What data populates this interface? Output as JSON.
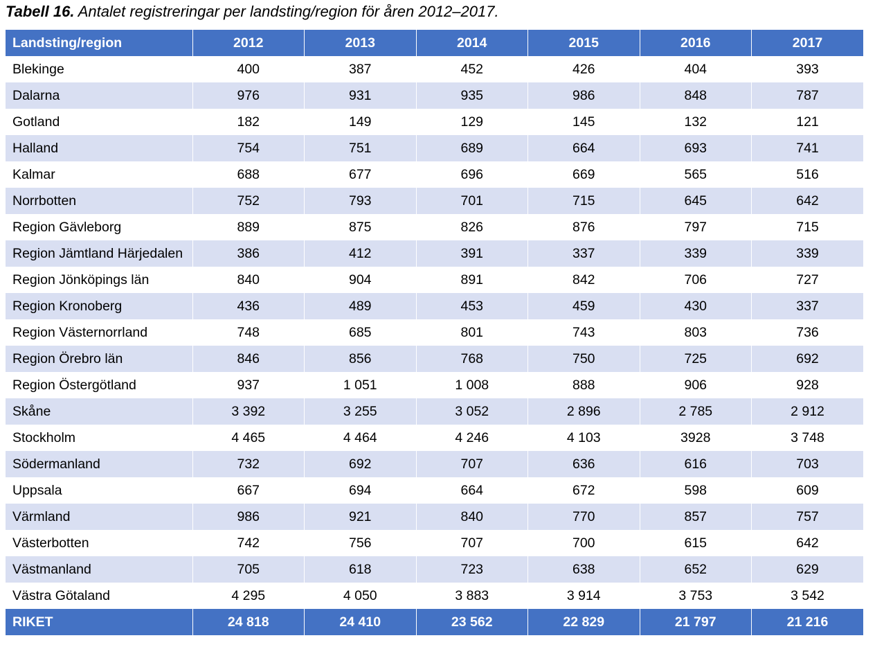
{
  "caption": {
    "lead": "Tabell 16.",
    "text": " Antalet registreringar per landsting/region för åren 2012–2017."
  },
  "table": {
    "headers": [
      "Landsting/region",
      "2012",
      "2013",
      "2014",
      "2015",
      "2016",
      "2017"
    ],
    "rows": [
      [
        "Blekinge",
        "400",
        "387",
        "452",
        "426",
        "404",
        "393"
      ],
      [
        "Dalarna",
        "976",
        "931",
        "935",
        "986",
        "848",
        "787"
      ],
      [
        "Gotland",
        "182",
        "149",
        "129",
        "145",
        "132",
        "121"
      ],
      [
        "Halland",
        "754",
        "751",
        "689",
        "664",
        "693",
        "741"
      ],
      [
        "Kalmar",
        "688",
        "677",
        "696",
        "669",
        "565",
        "516"
      ],
      [
        "Norrbotten",
        "752",
        "793",
        "701",
        "715",
        "645",
        "642"
      ],
      [
        "Region Gävleborg",
        "889",
        "875",
        "826",
        "876",
        "797",
        "715"
      ],
      [
        "Region Jämtland Härjedalen",
        "386",
        "412",
        "391",
        "337",
        "339",
        "339"
      ],
      [
        "Region Jönköpings län",
        "840",
        "904",
        "891",
        "842",
        "706",
        "727"
      ],
      [
        "Region Kronoberg",
        "436",
        "489",
        "453",
        "459",
        "430",
        "337"
      ],
      [
        "Region Västernorrland",
        "748",
        "685",
        "801",
        "743",
        "803",
        "736"
      ],
      [
        "Region Örebro län",
        "846",
        "856",
        "768",
        "750",
        "725",
        "692"
      ],
      [
        "Region Östergötland",
        "937",
        "1 051",
        "1 008",
        "888",
        "906",
        "928"
      ],
      [
        "Skåne",
        "3 392",
        "3 255",
        "3 052",
        "2 896",
        "2 785",
        "2 912"
      ],
      [
        "Stockholm",
        "4 465",
        "4 464",
        "4 246",
        "4 103",
        "3928",
        "3 748"
      ],
      [
        "Södermanland",
        "732",
        "692",
        "707",
        "636",
        "616",
        "703"
      ],
      [
        "Uppsala",
        "667",
        "694",
        "664",
        "672",
        "598",
        "609"
      ],
      [
        "Värmland",
        "986",
        "921",
        "840",
        "770",
        "857",
        "757"
      ],
      [
        "Västerbotten",
        "742",
        "756",
        "707",
        "700",
        "615",
        "642"
      ],
      [
        "Västmanland",
        "705",
        "618",
        "723",
        "638",
        "652",
        "629"
      ],
      [
        "Västra Götaland",
        "4 295",
        "4 050",
        "3 883",
        "3 914",
        "3 753",
        "3 542"
      ]
    ],
    "total": [
      "RIKET",
      "24 818",
      "24 410",
      "23 562",
      "22 829",
      "21 797",
      "21 216"
    ]
  },
  "colors": {
    "header_bg": "#4472c4",
    "header_text": "#ffffff",
    "band_bg": "#d9dff2",
    "row_bg": "#ffffff"
  }
}
